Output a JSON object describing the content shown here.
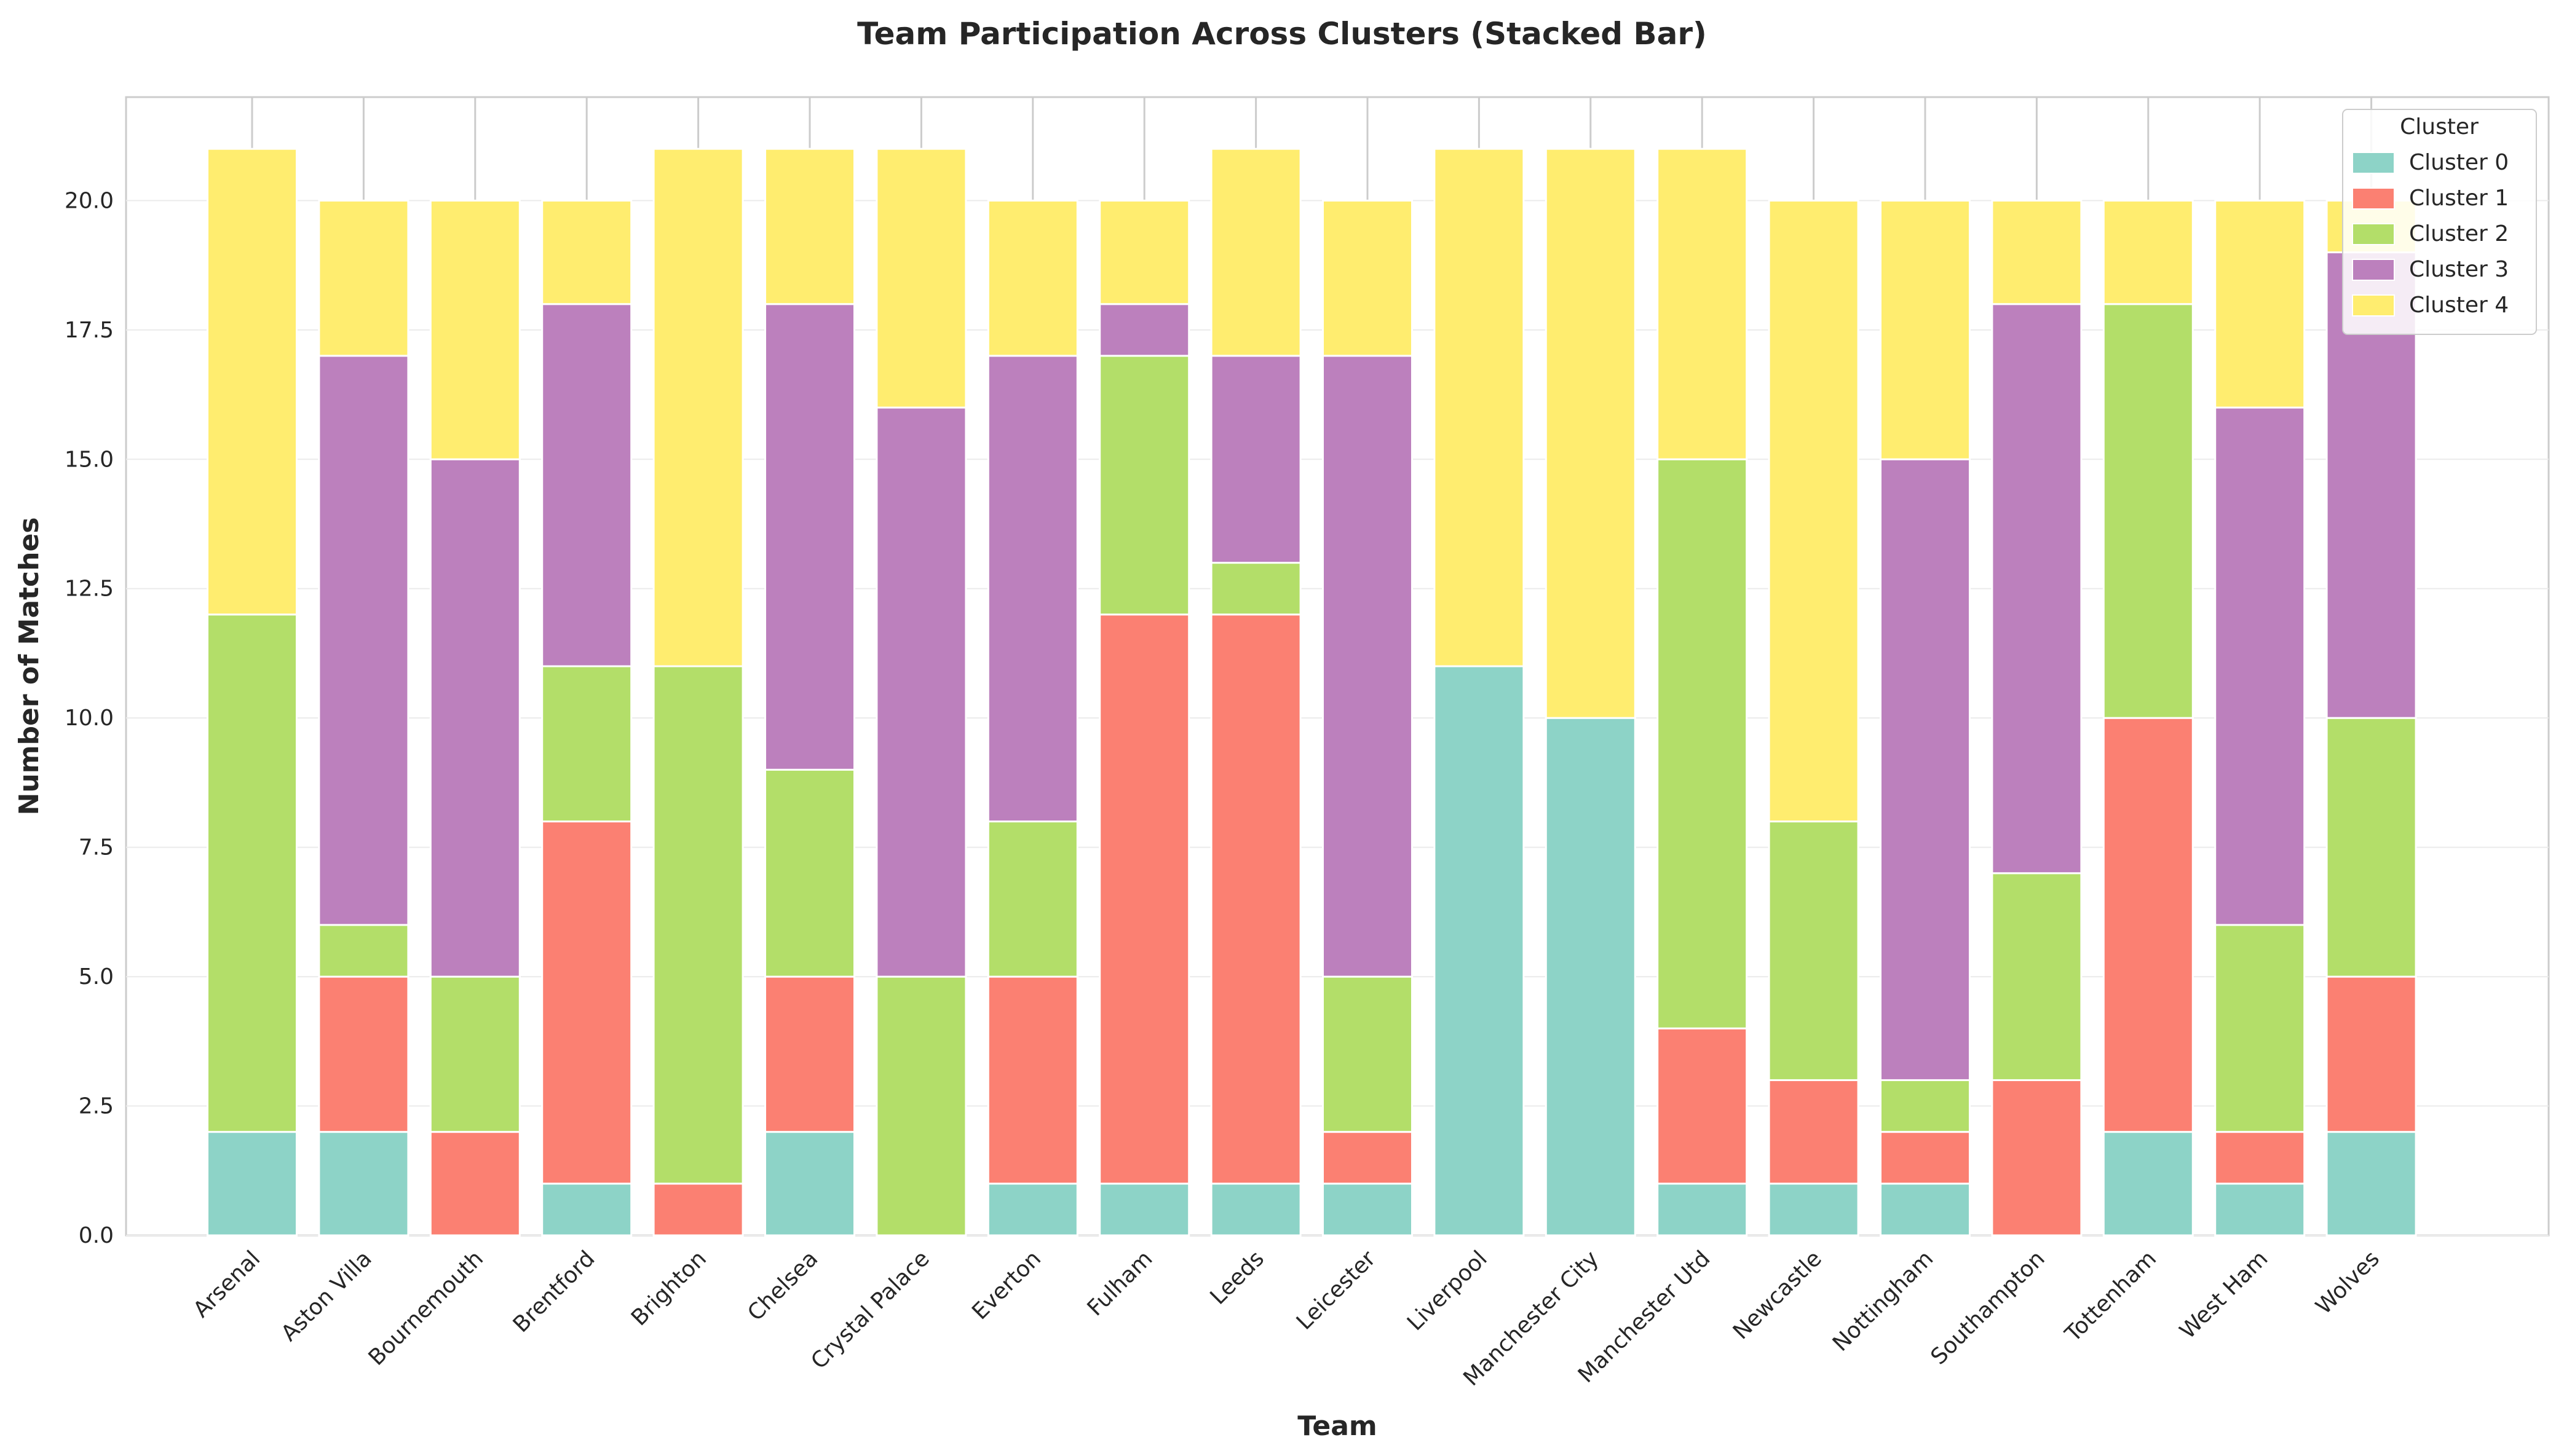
{
  "chart_data": {
    "type": "bar",
    "stacked": true,
    "title": "Team Participation Across Clusters (Stacked Bar)",
    "xlabel": "Team",
    "ylabel": "Number of Matches",
    "ylim": [
      0,
      22
    ],
    "yticks": [
      "0.0",
      "2.5",
      "5.0",
      "7.5",
      "10.0",
      "12.5",
      "15.0",
      "17.5",
      "20.0"
    ],
    "grid": true,
    "legend": {
      "title": "Cluster",
      "placement": "top-right"
    },
    "categories": [
      "Arsenal",
      "Aston Villa",
      "Bournemouth",
      "Brentford",
      "Brighton",
      "Chelsea",
      "Crystal Palace",
      "Everton",
      "Fulham",
      "Leeds",
      "Leicester",
      "Liverpool",
      "Manchester City",
      "Manchester Utd",
      "Newcastle",
      "Nottingham",
      "Southampton",
      "Tottenham",
      "West Ham",
      "Wolves"
    ],
    "series": [
      {
        "name": "Cluster 0",
        "color": "#8dd3c7",
        "values": [
          2,
          2,
          0,
          1,
          0,
          2,
          0,
          1,
          1,
          1,
          1,
          11,
          10,
          1,
          1,
          1,
          0,
          2,
          1,
          2
        ]
      },
      {
        "name": "Cluster 1",
        "color": "#fb8072",
        "values": [
          0,
          3,
          2,
          7,
          1,
          3,
          0,
          4,
          11,
          11,
          1,
          0,
          0,
          3,
          2,
          1,
          3,
          8,
          1,
          3
        ]
      },
      {
        "name": "Cluster 2",
        "color": "#b3de69",
        "values": [
          10,
          1,
          3,
          3,
          10,
          4,
          5,
          3,
          5,
          1,
          3,
          0,
          0,
          11,
          5,
          1,
          4,
          8,
          4,
          5
        ]
      },
      {
        "name": "Cluster 3",
        "color": "#bc80bd",
        "values": [
          0,
          11,
          10,
          7,
          0,
          9,
          11,
          9,
          1,
          4,
          12,
          0,
          0,
          0,
          0,
          12,
          11,
          0,
          10,
          9
        ]
      },
      {
        "name": "Cluster 4",
        "color": "#ffed6f",
        "values": [
          9,
          3,
          5,
          2,
          10,
          3,
          5,
          3,
          2,
          4,
          3,
          10,
          11,
          6,
          12,
          5,
          2,
          2,
          4,
          1
        ]
      }
    ]
  }
}
